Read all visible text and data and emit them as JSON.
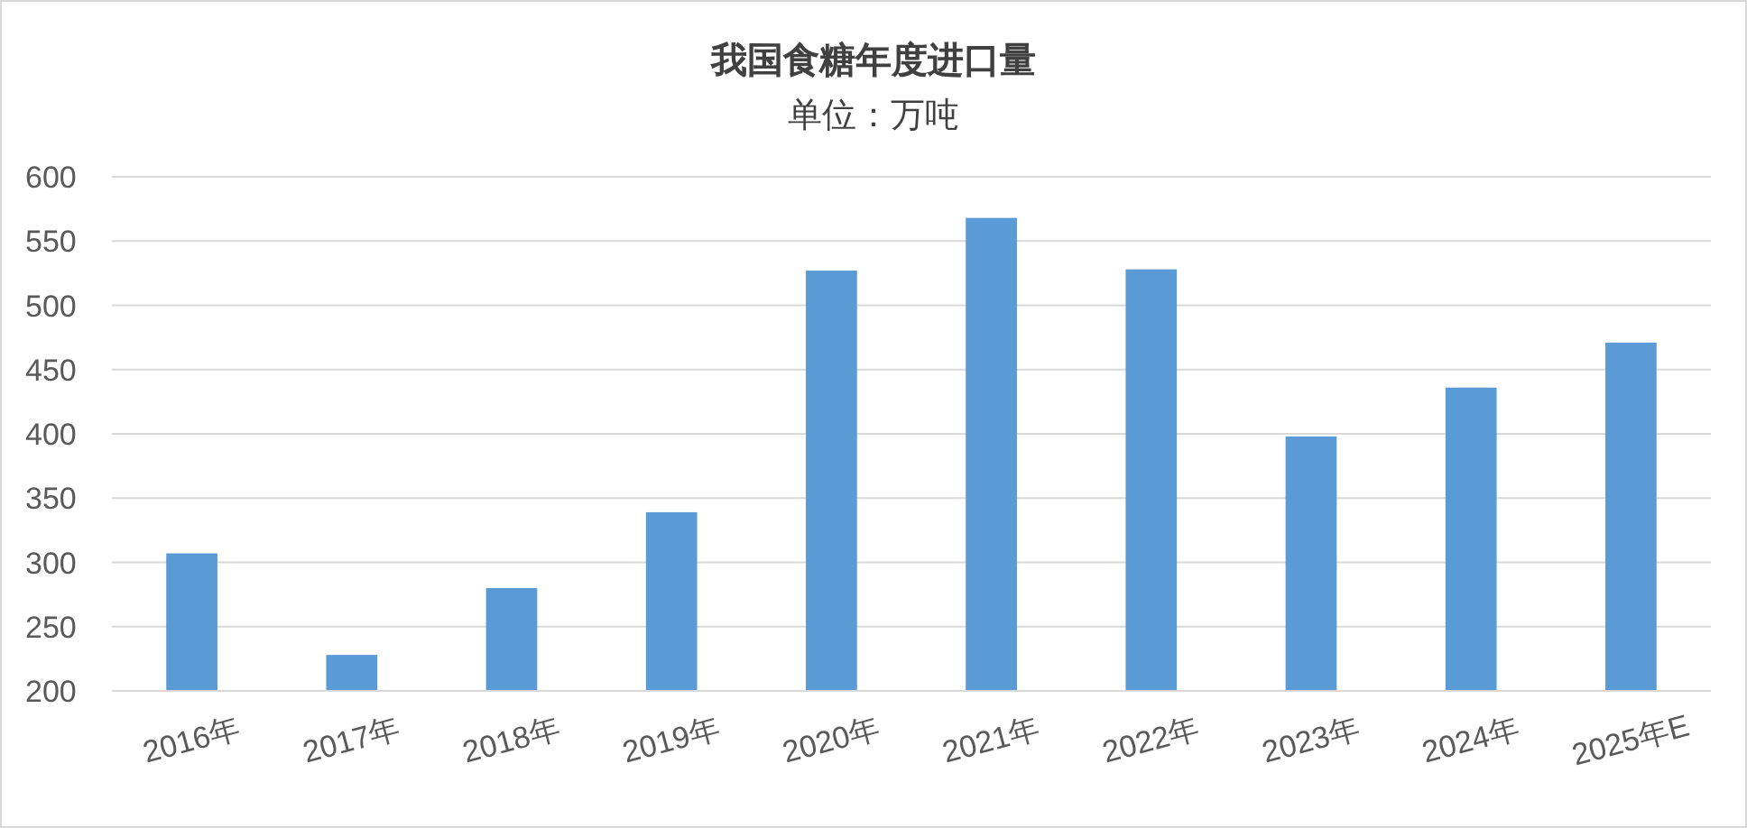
{
  "chart_data": {
    "type": "bar",
    "title": "我国食糖年度进口量",
    "subtitle": "单位：万吨",
    "categories": [
      "2016年",
      "2017年",
      "2018年",
      "2019年",
      "2020年",
      "2021年",
      "2022年",
      "2023年",
      "2024年",
      "2025年E"
    ],
    "values": [
      307,
      228,
      280,
      339,
      527,
      568,
      528,
      398,
      436,
      471
    ],
    "color": "#5b9bd5",
    "ylim": [
      200,
      600
    ],
    "yticks": [
      200,
      250,
      300,
      350,
      400,
      450,
      500,
      550,
      600
    ],
    "grid": "y"
  }
}
